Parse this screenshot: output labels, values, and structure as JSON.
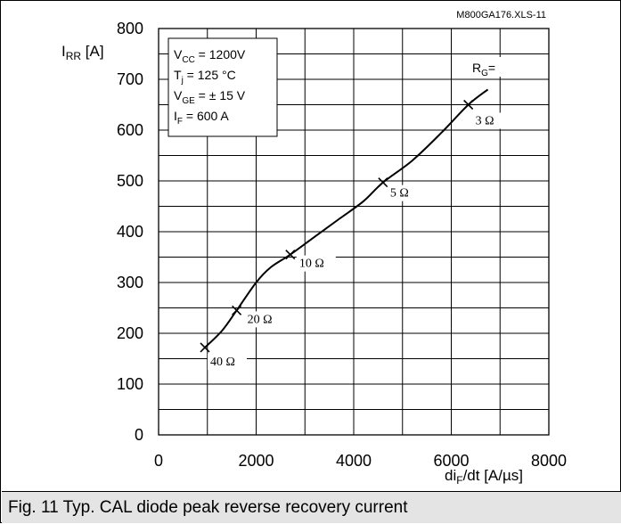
{
  "chart_data": {
    "type": "line",
    "x_ticks": [
      "0",
      "2000",
      "4000",
      "6000",
      "8000"
    ],
    "y_ticks": [
      "0",
      "100",
      "200",
      "300",
      "400",
      "500",
      "600",
      "700",
      "800"
    ],
    "xlim": [
      0,
      8000
    ],
    "ylim": [
      0,
      800
    ],
    "grid": true,
    "x_minor_step": 1000,
    "y_minor_step": 50,
    "reference": "M800GA176.XLS-11",
    "ylabel": {
      "main": "I",
      "sub": "RR",
      "unit": " [A]"
    },
    "xlabel": {
      "pre": "di",
      "sub": "F",
      "post": "/dt [A/µs]"
    },
    "conditions": [
      {
        "main": "V",
        "sub": "CC",
        "rest": " = 1200V"
      },
      {
        "main": "T",
        "sub": "j",
        "rest": "  = 125 °C"
      },
      {
        "main": "V",
        "sub": "GE",
        "rest": " = ± 15 V"
      },
      {
        "main": "I",
        "sub": "F",
        "rest": "  = 600 A"
      }
    ],
    "rg_label": {
      "main": "R",
      "sub": "G",
      "rest": "="
    },
    "curve": [
      [
        950,
        172
      ],
      [
        1300,
        205
      ],
      [
        1600,
        245
      ],
      [
        2000,
        300
      ],
      [
        2300,
        330
      ],
      [
        2700,
        355
      ],
      [
        3200,
        390
      ],
      [
        3700,
        425
      ],
      [
        4200,
        460
      ],
      [
        4600,
        497
      ],
      [
        5200,
        540
      ],
      [
        5800,
        595
      ],
      [
        6350,
        650
      ],
      [
        6750,
        680
      ]
    ],
    "points": [
      {
        "x": 950,
        "y": 172,
        "label": "40 Ω"
      },
      {
        "x": 1600,
        "y": 245,
        "label": "20 Ω"
      },
      {
        "x": 2700,
        "y": 355,
        "label": "10 Ω"
      },
      {
        "x": 4600,
        "y": 497,
        "label": "5 Ω"
      },
      {
        "x": 6350,
        "y": 650,
        "label": "3 Ω"
      }
    ]
  },
  "caption": "Fig. 11 Typ. CAL diode peak reverse recovery current"
}
